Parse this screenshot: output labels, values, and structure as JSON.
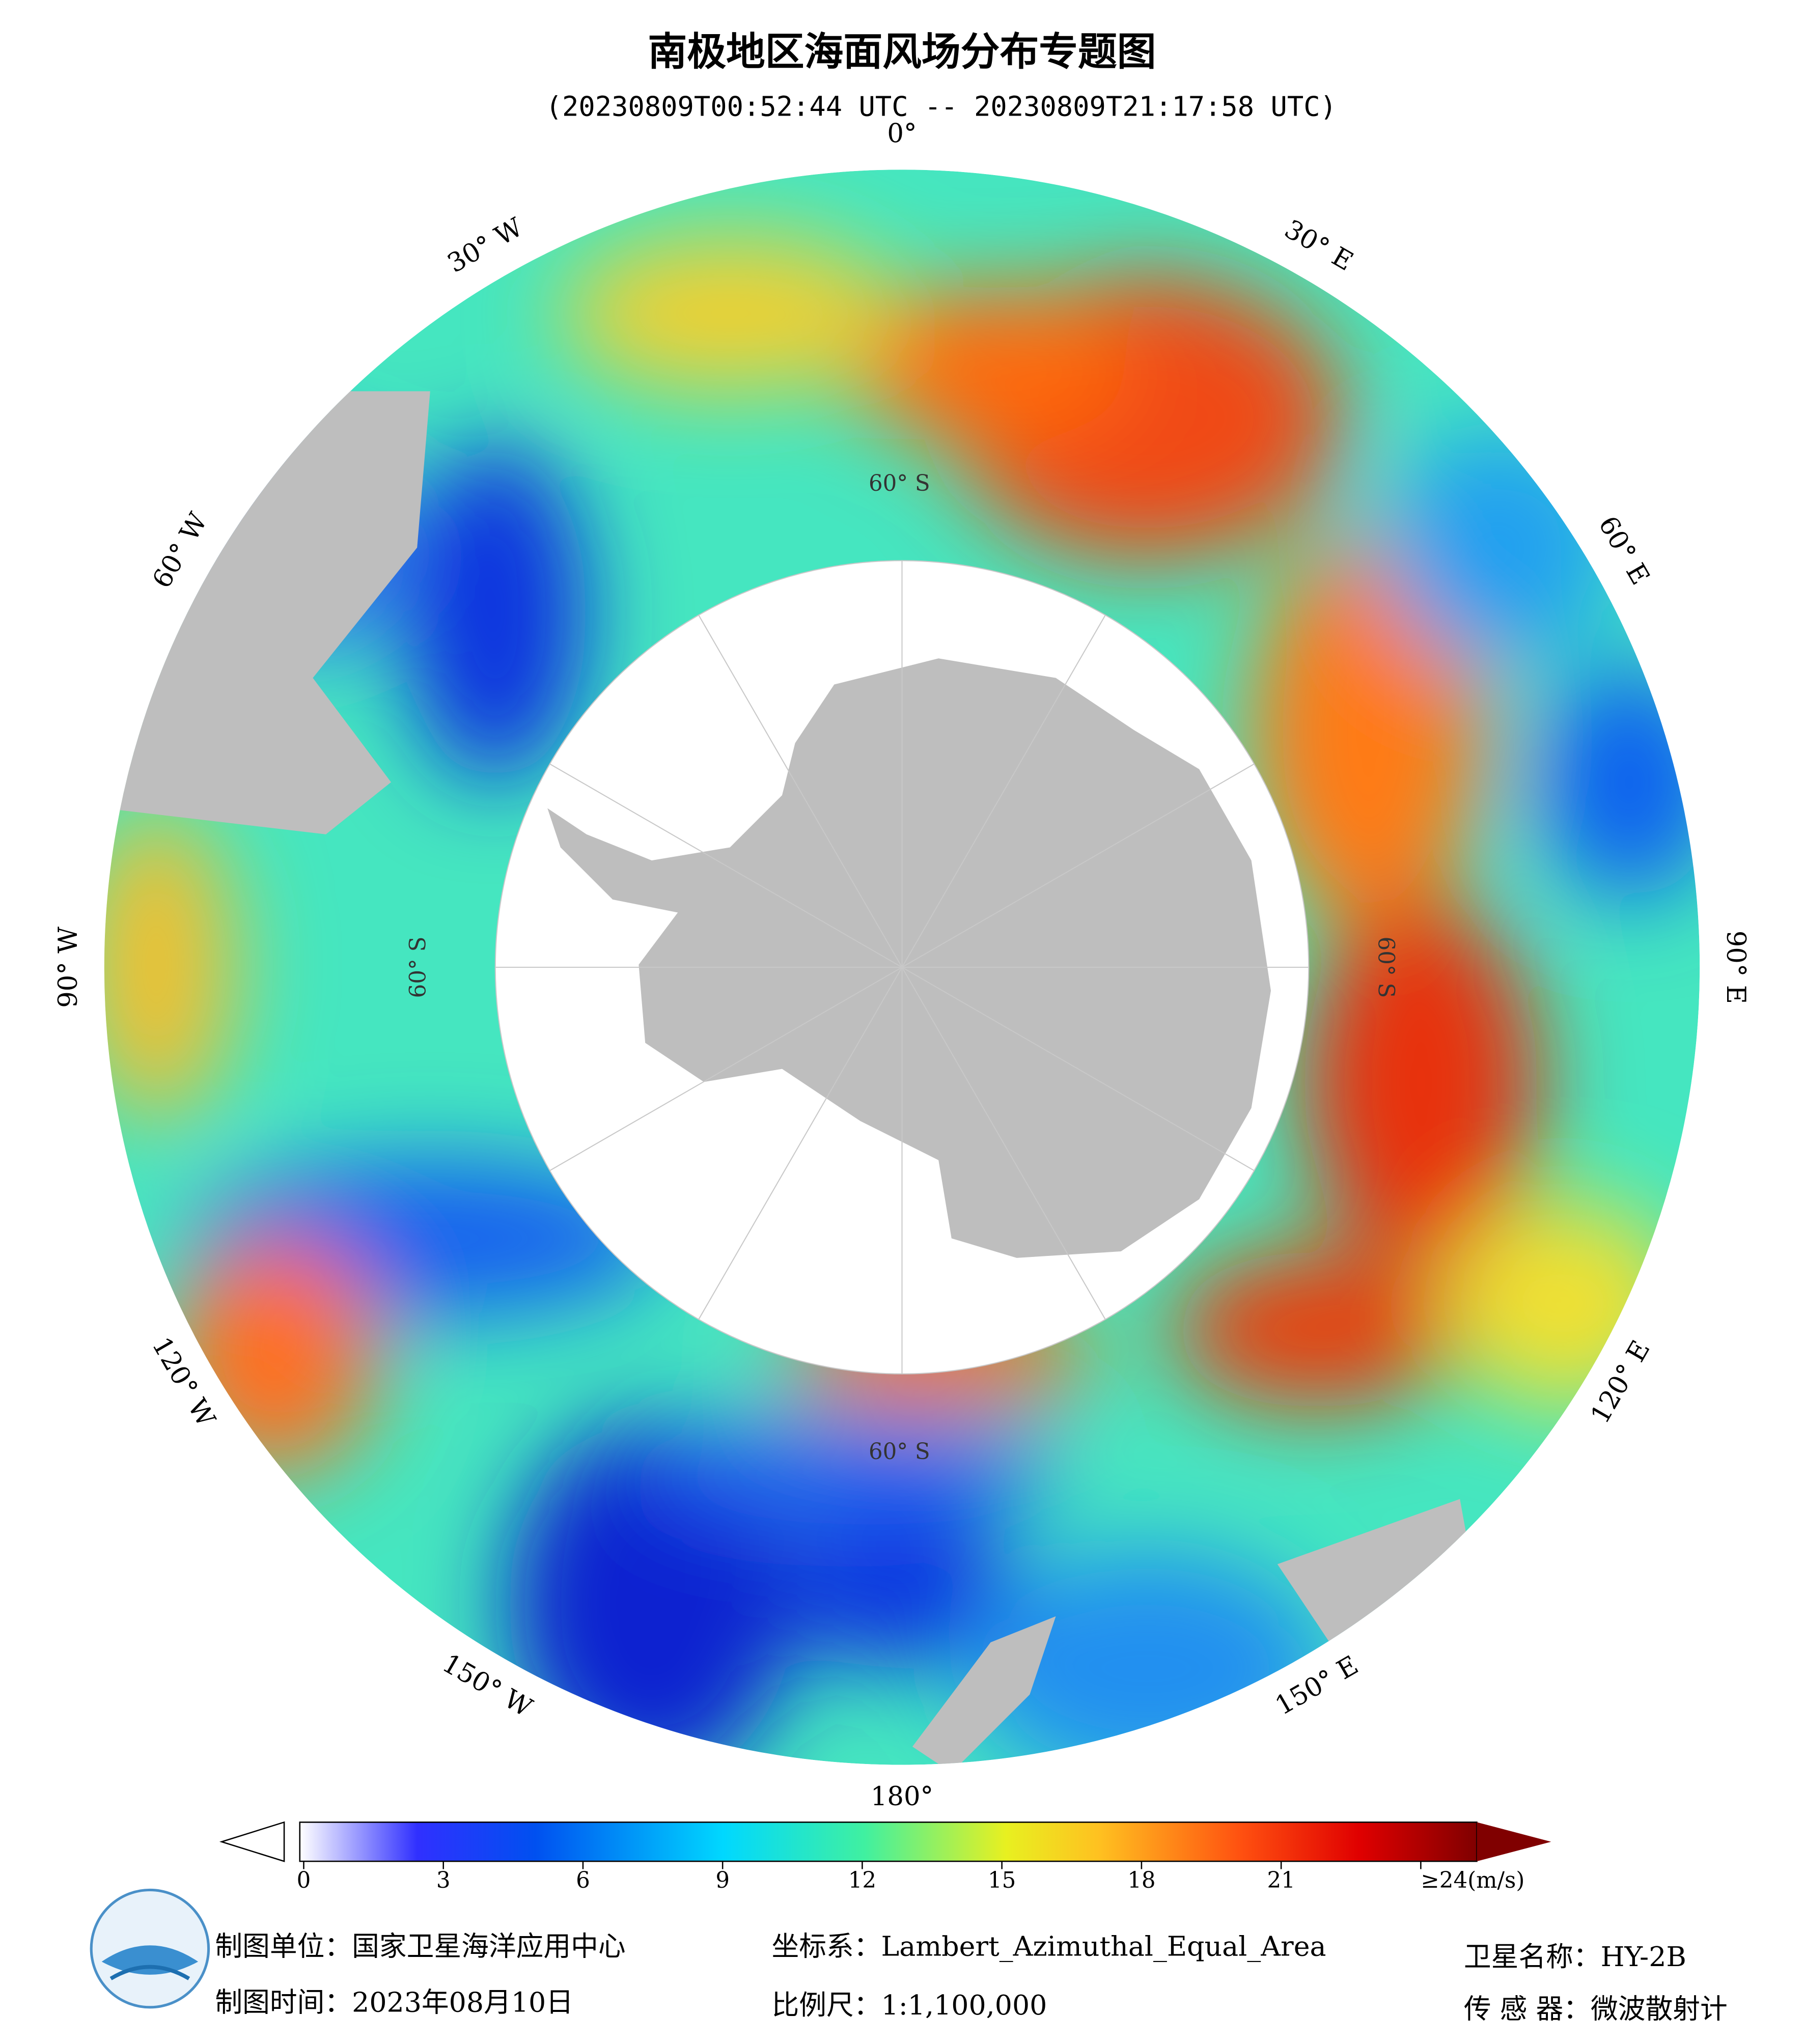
{
  "header": {
    "title": "南极地区海面风场分布专题图",
    "subtitle": "(20230809T00:52:44 UTC -- 20230809T21:17:58 UTC)"
  },
  "map": {
    "lon_labels": [
      "0°",
      "30° E",
      "60° E",
      "90° E",
      "120° E",
      "150° E",
      "180°",
      "150° W",
      "120° W",
      "90° W",
      "60° W",
      "30° W"
    ],
    "lat_labels": [
      "60° S",
      "60° S",
      "60° S",
      "60° S"
    ]
  },
  "colorbar": {
    "lim": [
      0,
      24
    ],
    "ticks": [
      0,
      3,
      6,
      9,
      12,
      15,
      18,
      21,
      {
        "value": 24,
        "label": "≥24(m/s)"
      }
    ]
  },
  "footer": {
    "unit": "制图单位：国家卫星海洋应用中心",
    "date": "制图时间：2023年08月10日",
    "crs": "坐标系：Lambert_Azimuthal_Equal_Area",
    "scale": "比例尺：1:1,100,000",
    "satellite": "卫星名称：HY-2B",
    "sensor": "传 感 器：微波散射计"
  }
}
